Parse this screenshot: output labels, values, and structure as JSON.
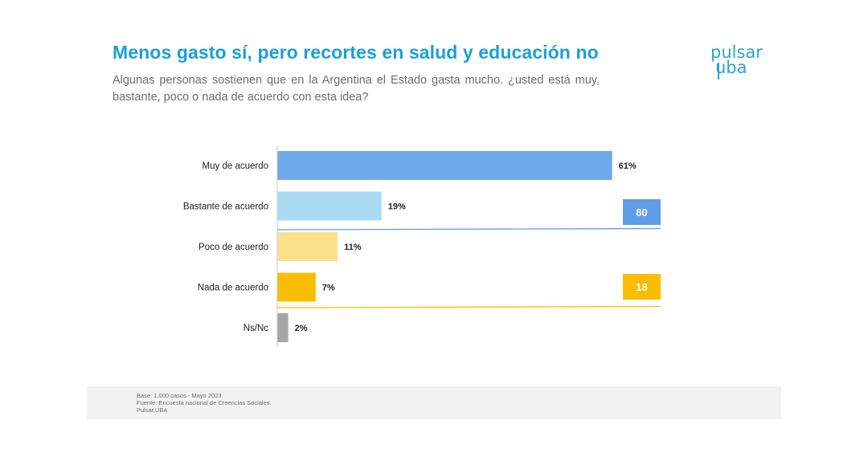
{
  "header": {
    "title": "Menos gasto sí, pero recortes en salud y educación no",
    "subtitle": "Algunas personas sostienen que en la Argentina el Estado gasta mucho. ¿usted está muy, bastante, poco o nada de acuerdo con esta idea?"
  },
  "logo": {
    "line1": "pulsar",
    "line2": "uba"
  },
  "colors": {
    "title": "#1a9fd9",
    "agree_strong": "#6ea8e8",
    "agree_mild": "#a9dcf2",
    "disagree_mild": "#fde08a",
    "disagree_strong": "#fbbd00",
    "ns": "#a6a6a6",
    "agree_group": "#5f9de6",
    "disagree_group": "#fbbd00"
  },
  "chart_data": {
    "type": "bar",
    "orientation": "horizontal",
    "categories": [
      "Muy de acuerdo",
      "Bastante de acuerdo",
      "Poco de acuerdo",
      "Nada de acuerdo",
      "Ns/Nc"
    ],
    "values": [
      61,
      19,
      11,
      7,
      2
    ],
    "value_labels": [
      "61%",
      "19%",
      "11%",
      "7%",
      "2%"
    ],
    "unit": "%",
    "xlim": [
      0,
      100
    ],
    "grid": false,
    "groups": [
      {
        "label": "80",
        "value": 80,
        "categories": [
          "Muy de acuerdo",
          "Bastante de acuerdo"
        ]
      },
      {
        "label": "18",
        "value": 18,
        "categories": [
          "Poco de acuerdo",
          "Nada de acuerdo"
        ]
      }
    ]
  },
  "footer": {
    "base": "Base: 1.000 casos - Mayo 2023.",
    "source": "Fuente: Encuesta nacional de Creencias Sociales.",
    "credit": "Pulsar.UBA"
  }
}
